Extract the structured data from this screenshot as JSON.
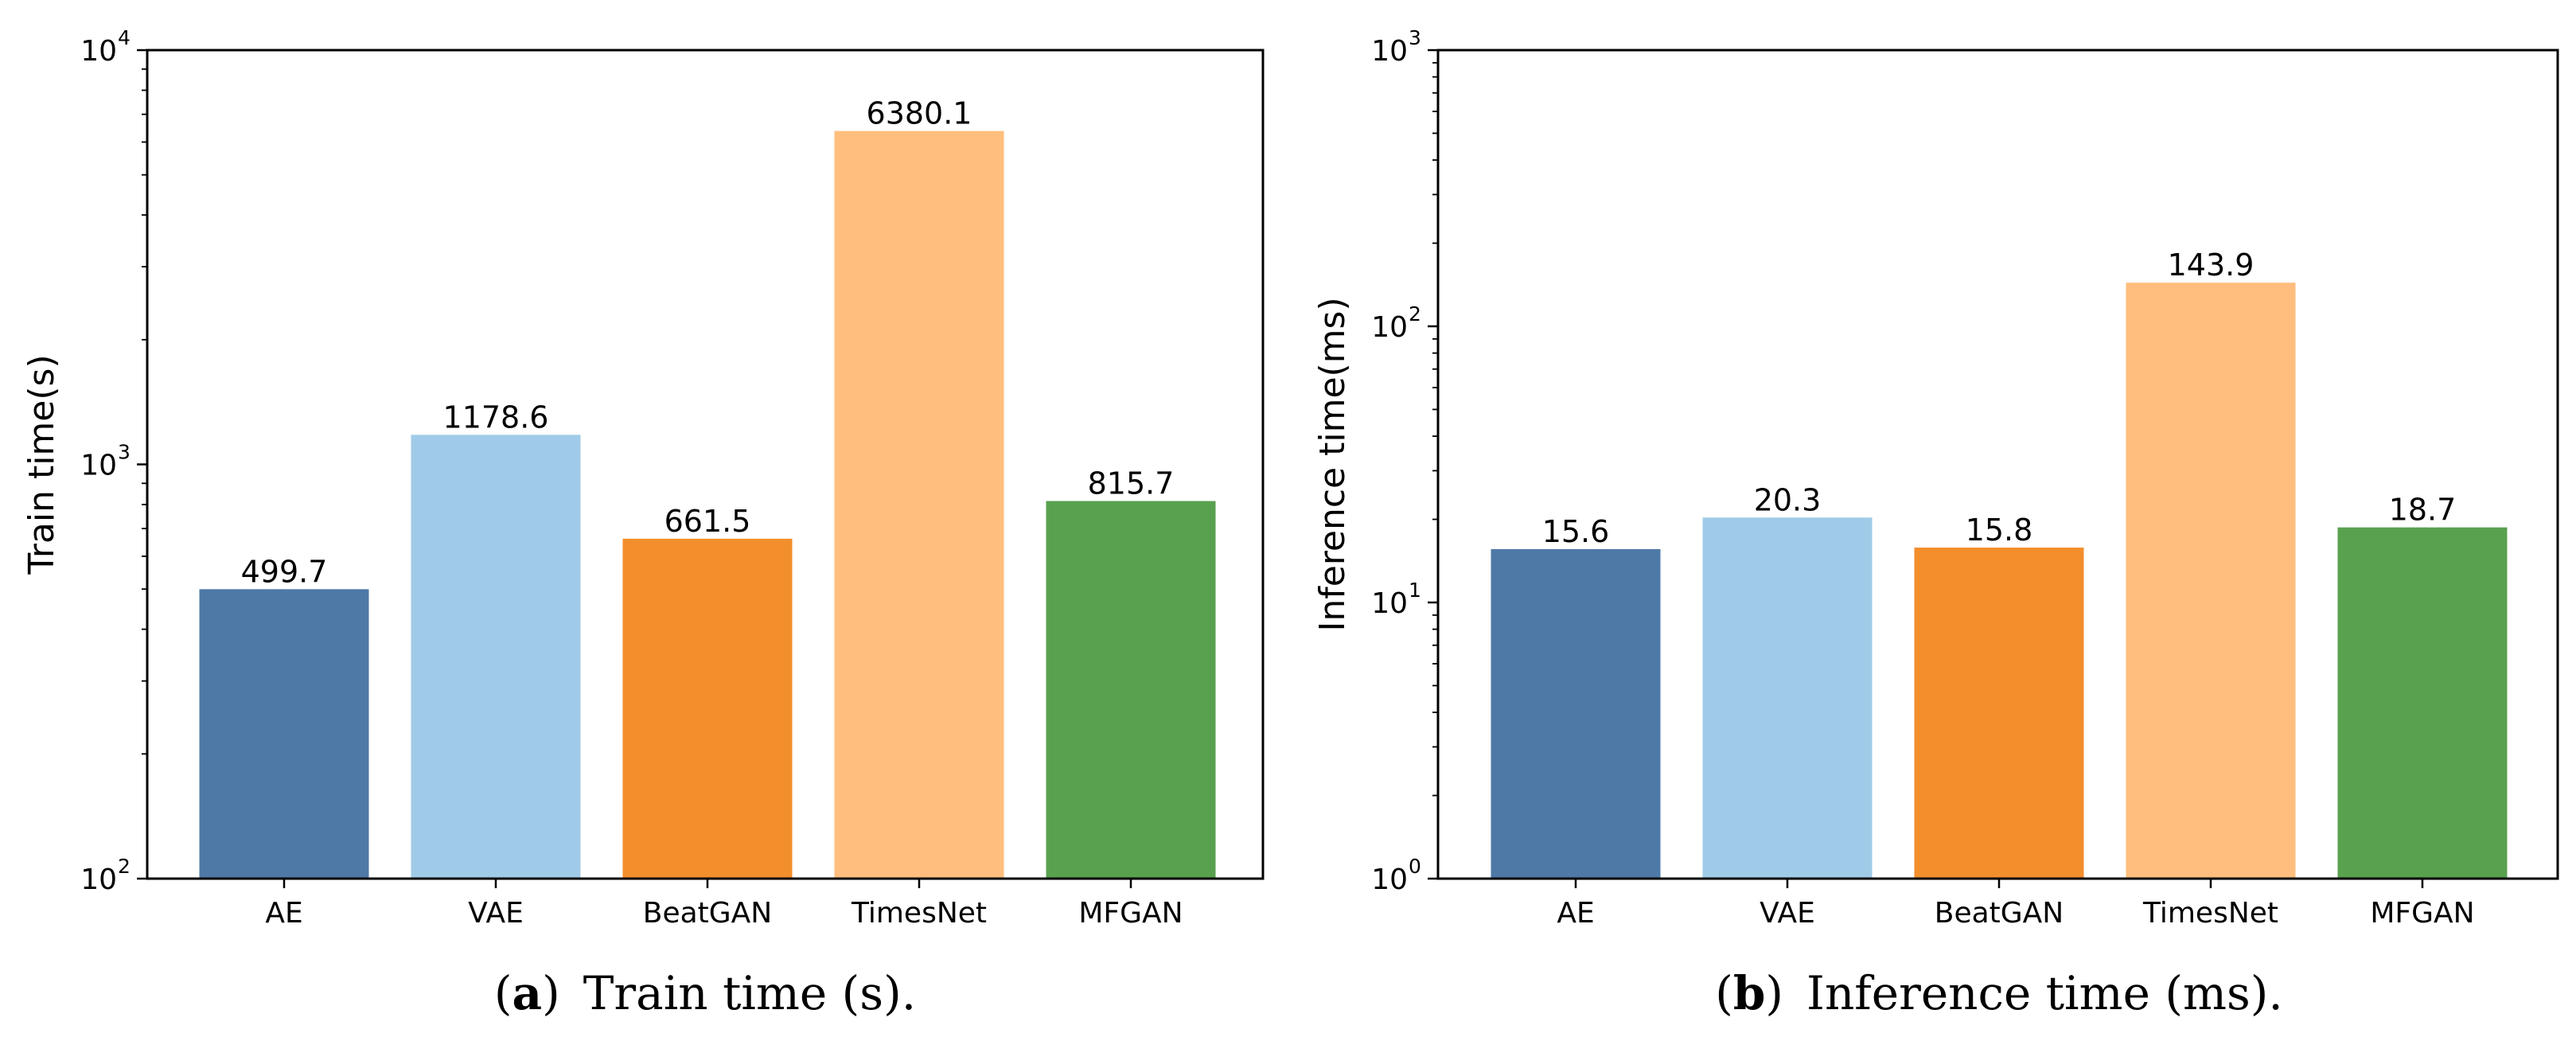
{
  "chart_data": [
    {
      "type": "bar",
      "scale": "log",
      "categories": [
        "AE",
        "VAE",
        "BeatGAN",
        "TimesNet",
        "MFGAN"
      ],
      "values": [
        499.7,
        1178.6,
        661.5,
        6380.1,
        815.7
      ],
      "value_labels": [
        "499.7",
        "1178.6",
        "661.5",
        "6380.1",
        "815.7"
      ],
      "colors": [
        "#4e79a7",
        "#a0cbe8",
        "#f28e2b",
        "#ffbe7d",
        "#59a14f"
      ],
      "ylabel": "Train time(s)",
      "ylim": [
        100,
        10000
      ],
      "y_ticks": [
        {
          "value": 100,
          "base": "10",
          "exp": "2"
        },
        {
          "value": 1000,
          "base": "10",
          "exp": "3"
        },
        {
          "value": 10000,
          "base": "10",
          "exp": "4"
        }
      ],
      "caption_letter": "(a)",
      "caption_text": "Train time (s)."
    },
    {
      "type": "bar",
      "scale": "log",
      "categories": [
        "AE",
        "VAE",
        "BeatGAN",
        "TimesNet",
        "MFGAN"
      ],
      "values": [
        15.6,
        20.3,
        15.8,
        143.9,
        18.7
      ],
      "value_labels": [
        "15.6",
        "20.3",
        "15.8",
        "143.9",
        "18.7"
      ],
      "colors": [
        "#4e79a7",
        "#a0cbe8",
        "#f28e2b",
        "#ffbe7d",
        "#59a14f"
      ],
      "ylabel": "Inference time(ms)",
      "ylim": [
        1,
        1000
      ],
      "y_ticks": [
        {
          "value": 1,
          "base": "10",
          "exp": "0"
        },
        {
          "value": 10,
          "base": "10",
          "exp": "1"
        },
        {
          "value": 100,
          "base": "10",
          "exp": "2"
        },
        {
          "value": 1000,
          "base": "10",
          "exp": "3"
        }
      ],
      "caption_letter": "(b)",
      "caption_text": "Inference time (ms)."
    }
  ]
}
